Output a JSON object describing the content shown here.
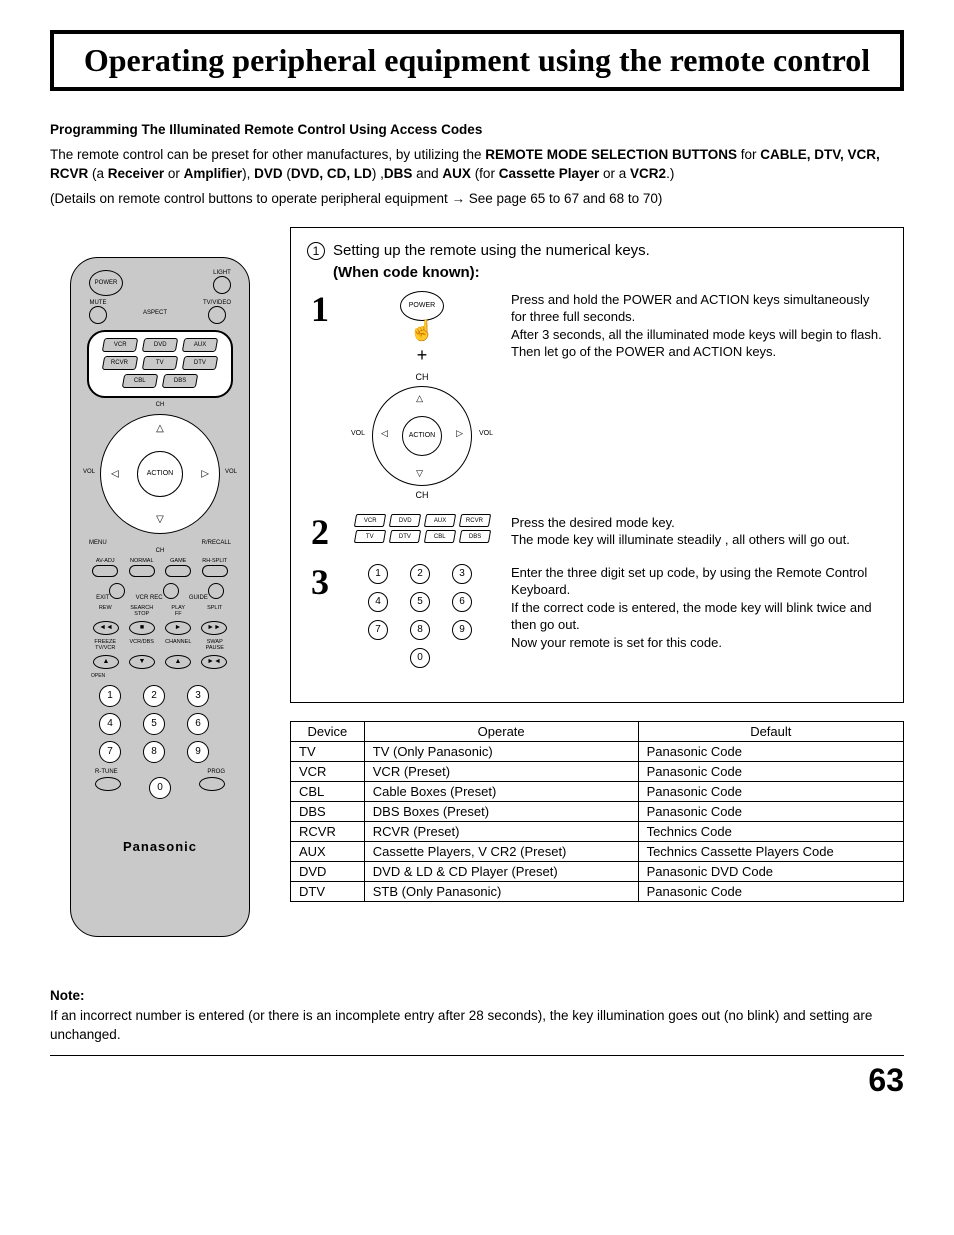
{
  "page": {
    "title": "Operating peripheral equipment using the remote control",
    "number": "63"
  },
  "section": {
    "heading": "Programming The Illuminated Remote Control Using Access Codes",
    "p1_a": "The remote control can be preset for other manufactures, by utilizing the ",
    "p1_b": "REMOTE MODE SELECTION BUTTONS",
    "p1_c": " for ",
    "p1_d": "CABLE, DTV, VCR, RCVR",
    "p1_e": " (a ",
    "p1_f": "Receiver",
    "p1_g": " or ",
    "p1_h": "Amplifier",
    "p1_i": "), ",
    "p1_j": "DVD",
    "p1_k": " (",
    "p1_l": "DVD, CD, LD",
    "p1_m": ") ,",
    "p1_n": "DBS",
    "p1_o": " and ",
    "p1_p": "AUX",
    "p1_q": " (for ",
    "p1_r": "Cassette Player",
    "p1_s": " or a ",
    "p1_t": "VCR2",
    "p1_u": ".)",
    "p2": "(Details on remote control buttons to operate peripheral equipment  →  See page 65 to 67 and 68 to 70)"
  },
  "remote": {
    "power": "POWER",
    "light": "LIGHT",
    "aspect": "ASPECT",
    "tvvideo": "TV/VIDEO",
    "mute": "MUTE",
    "modes": [
      "VCR",
      "DVD",
      "AUX",
      "RCVR",
      "TV",
      "DTV",
      "CBL",
      "DBS"
    ],
    "ch": "CH",
    "action": "ACTION",
    "vol": "VOL",
    "menu": "MENU",
    "recall": "R/RECALL",
    "row1": [
      "AV-ADJ",
      "NORMAL",
      "GAME",
      "RH-SPLIT"
    ],
    "row2": [
      "EXIT",
      "VCR REC",
      "GUIDE"
    ],
    "row3": [
      "REW",
      "SEARCH\nSTOP",
      "PLAY\nFF",
      "SPLIT"
    ],
    "row4": [
      "FREEZE\nTV/VCR",
      "VCR/DBS",
      "CHANNEL",
      "SWAP\nPAUSE"
    ],
    "trans": [
      "◄◄",
      "■",
      "►",
      "►►"
    ],
    "trans2": [
      "▲",
      "▼",
      "▲",
      "►◄"
    ],
    "nums": [
      "1",
      "2",
      "3",
      "4",
      "5",
      "6",
      "7",
      "8",
      "9",
      "0"
    ],
    "bottom": [
      "R-TUNE",
      "",
      "PROG"
    ],
    "brand": "Panasonic"
  },
  "steps": {
    "head_num": "1",
    "head": "Setting up the remote using the numerical keys.",
    "when": "(When code known):",
    "s1": {
      "n": "1",
      "txt": "Press and hold the POWER and ACTION keys simultaneously for three full seconds.\nAfter 3 seconds, all the illuminated mode keys will begin to flash. Then let go of the POWER and ACTION keys."
    },
    "s2": {
      "n": "2",
      "txt": "Press the desired mode key.\nThe mode key will illuminate steadily , all others will go out."
    },
    "s3": {
      "n": "3",
      "txt": "Enter the three digit set up code, by using the Remote Control Keyboard.\nIf the correct code is entered, the mode key will blink twice and then go out.\nNow your remote is set for this code."
    }
  },
  "table": {
    "headers": [
      "Device",
      "Operate",
      "Default"
    ],
    "rows": [
      [
        "TV",
        "TV (Only Panasonic)",
        "Panasonic Code"
      ],
      [
        "VCR",
        "VCR (Preset)",
        "Panasonic Code"
      ],
      [
        "CBL",
        "Cable Boxes (Preset)",
        "Panasonic Code"
      ],
      [
        "DBS",
        "DBS Boxes (Preset)",
        "Panasonic Code"
      ],
      [
        "RCVR",
        "RCVR (Preset)",
        "Technics Code"
      ],
      [
        "AUX",
        "Cassette Players, V CR2 (Preset)",
        "Technics Cassette Players Code"
      ],
      [
        "DVD",
        "DVD & LD & CD Player (Preset)",
        "Panasonic DVD Code"
      ],
      [
        "DTV",
        "STB  (Only Panasonic)",
        "Panasonic Code"
      ]
    ]
  },
  "note": {
    "h": "Note:",
    "body": "If an incorrect number is entered (or there is an incomplete entry after 28 seconds), the key illumination goes out  (no blink) and setting are unchanged."
  },
  "colors": {
    "border": "#000000",
    "remote_bg": "#c9c9c9",
    "page_bg": "#ffffff"
  }
}
